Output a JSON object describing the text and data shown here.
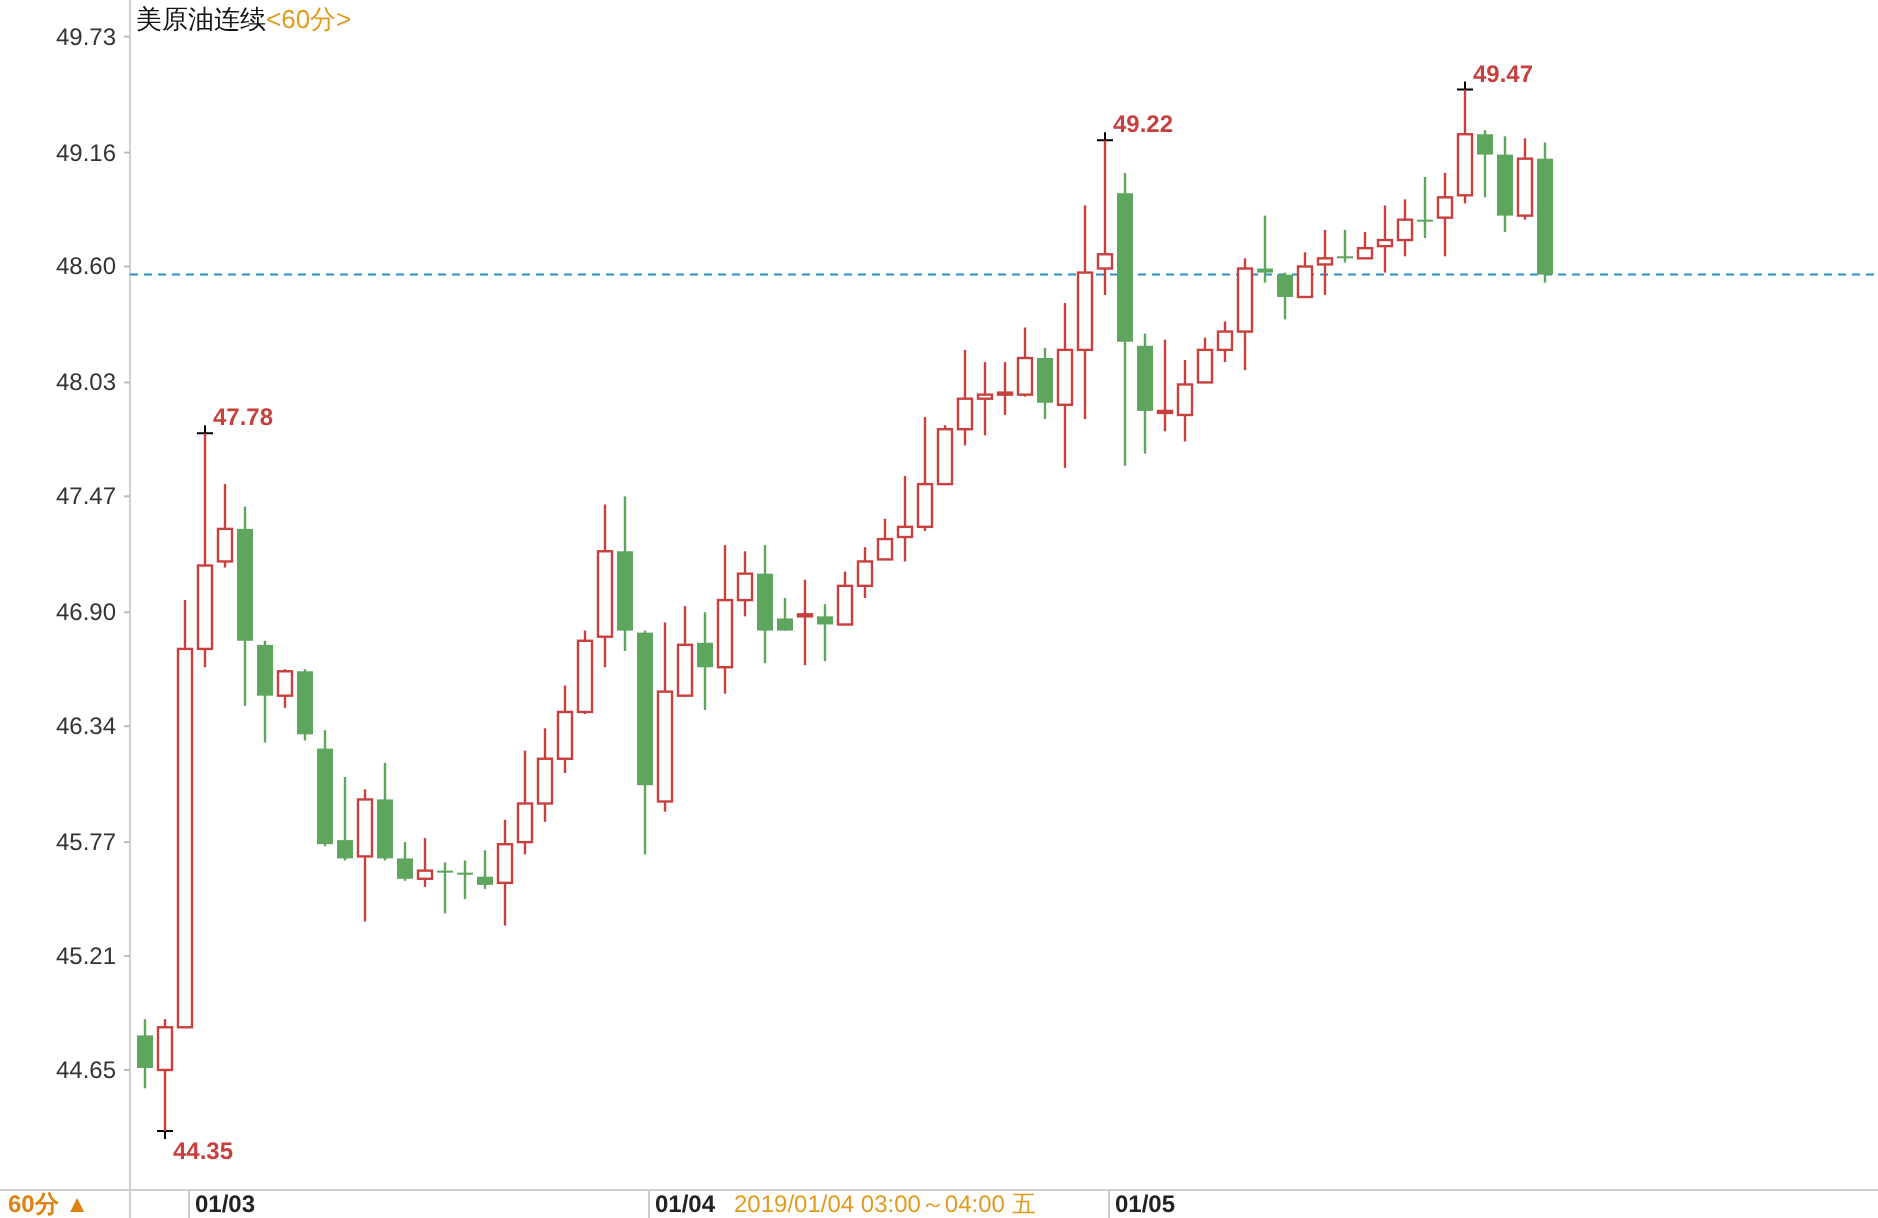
{
  "chart_data": {
    "type": "candlestick",
    "title": "美原油连续",
    "subtitle": "<60分>",
    "categories": [
      null,
      null,
      null,
      null,
      "01/03",
      null,
      null,
      null,
      null,
      null,
      null,
      null,
      null,
      null,
      null,
      null,
      null,
      null,
      null,
      null,
      null,
      null,
      null,
      null,
      null,
      null,
      null,
      "01/04",
      null,
      null,
      null,
      null,
      null,
      null,
      null,
      null,
      null,
      null,
      null,
      null,
      null,
      null,
      null,
      null,
      null,
      null,
      null,
      null,
      null,
      null,
      "01/05",
      null,
      null,
      null,
      null,
      null,
      null,
      null,
      null,
      null,
      null,
      null,
      null,
      null,
      null,
      null,
      null,
      null,
      null,
      null,
      null
    ],
    "ohlc": [
      [
        44.82,
        44.9,
        44.56,
        44.66
      ],
      [
        44.65,
        44.9,
        44.35,
        44.86
      ],
      [
        44.86,
        46.96,
        44.86,
        46.72
      ],
      [
        46.72,
        47.78,
        46.63,
        47.13
      ],
      [
        47.15,
        47.53,
        47.12,
        47.31
      ],
      [
        47.31,
        47.42,
        46.44,
        46.76
      ],
      [
        46.74,
        46.76,
        46.26,
        46.49
      ],
      [
        46.49,
        46.62,
        46.43,
        46.61
      ],
      [
        46.61,
        46.62,
        46.27,
        46.3
      ],
      [
        46.23,
        46.32,
        45.75,
        45.76
      ],
      [
        45.78,
        46.09,
        45.68,
        45.69
      ],
      [
        45.7,
        46.03,
        45.38,
        45.98
      ],
      [
        45.98,
        46.16,
        45.68,
        45.69
      ],
      [
        45.69,
        45.77,
        45.58,
        45.59
      ],
      [
        45.59,
        45.79,
        45.55,
        45.63
      ],
      [
        45.63,
        45.67,
        45.42,
        45.62
      ],
      [
        45.62,
        45.68,
        45.49,
        45.61
      ],
      [
        45.6,
        45.73,
        45.54,
        45.56
      ],
      [
        45.57,
        45.88,
        45.36,
        45.76
      ],
      [
        45.77,
        46.22,
        45.71,
        45.96
      ],
      [
        45.96,
        46.33,
        45.87,
        46.18
      ],
      [
        46.18,
        46.54,
        46.11,
        46.41
      ],
      [
        46.41,
        46.81,
        46.4,
        46.76
      ],
      [
        46.78,
        47.43,
        46.63,
        47.2
      ],
      [
        47.2,
        47.47,
        46.71,
        46.81
      ],
      [
        46.8,
        46.81,
        45.71,
        46.05
      ],
      [
        45.97,
        46.85,
        45.92,
        46.51
      ],
      [
        46.49,
        46.93,
        46.49,
        46.74
      ],
      [
        46.75,
        46.9,
        46.42,
        46.63
      ],
      [
        46.63,
        47.23,
        46.5,
        46.96
      ],
      [
        46.96,
        47.2,
        46.88,
        47.09
      ],
      [
        47.09,
        47.23,
        46.65,
        46.81
      ],
      [
        46.87,
        46.97,
        46.81,
        46.81
      ],
      [
        46.88,
        47.06,
        46.64,
        46.89
      ],
      [
        46.88,
        46.94,
        46.66,
        46.84
      ],
      [
        46.84,
        47.1,
        46.84,
        47.03
      ],
      [
        47.03,
        47.22,
        46.97,
        47.15
      ],
      [
        47.16,
        47.36,
        47.16,
        47.26
      ],
      [
        47.27,
        47.57,
        47.15,
        47.32
      ],
      [
        47.32,
        47.86,
        47.3,
        47.53
      ],
      [
        47.53,
        47.82,
        47.53,
        47.8
      ],
      [
        47.8,
        48.19,
        47.72,
        47.95
      ],
      [
        47.95,
        48.13,
        47.77,
        47.97
      ],
      [
        47.97,
        48.13,
        47.87,
        47.98
      ],
      [
        47.97,
        48.3,
        47.96,
        48.15
      ],
      [
        48.15,
        48.2,
        47.85,
        47.93
      ],
      [
        47.92,
        48.42,
        47.61,
        48.19
      ],
      [
        48.19,
        48.9,
        47.85,
        48.57
      ],
      [
        48.59,
        49.22,
        48.46,
        48.66
      ],
      [
        48.96,
        49.06,
        47.62,
        48.23
      ],
      [
        48.21,
        48.27,
        47.68,
        47.89
      ],
      [
        47.88,
        48.24,
        47.79,
        47.89
      ],
      [
        47.87,
        48.14,
        47.74,
        48.02
      ],
      [
        48.03,
        48.25,
        48.03,
        48.19
      ],
      [
        48.19,
        48.33,
        48.13,
        48.28
      ],
      [
        48.28,
        48.64,
        48.09,
        48.59
      ],
      [
        48.59,
        48.85,
        48.52,
        48.57
      ],
      [
        48.56,
        48.57,
        48.34,
        48.45
      ],
      [
        48.45,
        48.67,
        48.45,
        48.6
      ],
      [
        48.61,
        48.78,
        48.46,
        48.64
      ],
      [
        48.65,
        48.78,
        48.62,
        48.64
      ],
      [
        48.64,
        48.77,
        48.64,
        48.69
      ],
      [
        48.7,
        48.9,
        48.57,
        48.73
      ],
      [
        48.73,
        48.93,
        48.65,
        48.83
      ],
      [
        48.83,
        49.04,
        48.74,
        48.82
      ],
      [
        48.84,
        49.06,
        48.65,
        48.94
      ],
      [
        48.95,
        49.47,
        48.91,
        49.25
      ],
      [
        49.25,
        49.27,
        48.94,
        49.15
      ],
      [
        49.15,
        49.24,
        48.77,
        48.85
      ],
      [
        48.85,
        49.23,
        48.83,
        49.13
      ],
      [
        49.13,
        49.21,
        48.52,
        48.56
      ]
    ],
    "colors": [
      "#5ea55e",
      "#c8403e",
      "#c8403e",
      "#c8403e",
      "#c8403e",
      "#5ea55e",
      "#5ea55e",
      "#c8403e",
      "#5ea55e",
      "#5ea55e",
      "#5ea55e",
      "#c8403e",
      "#5ea55e",
      "#5ea55e",
      "#c8403e",
      "#5ea55e",
      "#5ea55e",
      "#5ea55e",
      "#c8403e",
      "#c8403e",
      "#c8403e",
      "#c8403e",
      "#c8403e",
      "#c8403e",
      "#5ea55e",
      "#5ea55e",
      "#c8403e",
      "#c8403e",
      "#5ea55e",
      "#c8403e",
      "#c8403e",
      "#5ea55e",
      "#5ea55e",
      "#c8403e",
      "#5ea55e",
      "#c8403e",
      "#c8403e",
      "#c8403e",
      "#c8403e",
      "#c8403e",
      "#c8403e",
      "#c8403e",
      "#c8403e",
      "#c8403e",
      "#c8403e",
      "#5ea55e",
      "#c8403e",
      "#c8403e",
      "#c8403e",
      "#5ea55e",
      "#5ea55e",
      "#c8403e",
      "#c8403e",
      "#c8403e",
      "#c8403e",
      "#c8403e",
      "#5ea55e",
      "#5ea55e",
      "#c8403e",
      "#c8403e",
      "#5ea55e",
      "#c8403e",
      "#c8403e",
      "#c8403e",
      "#5ea55e",
      "#c8403e",
      "#c8403e",
      "#5ea55e",
      "#5ea55e",
      "#c8403e",
      "#5ea55e"
    ],
    "ylim": [
      44.06,
      49.91
    ],
    "yticks": [
      49.73,
      49.16,
      {
        "value": 48.6,
        "label": "48.60"
      },
      48.03,
      47.47,
      {
        "value": 46.9,
        "label": "46.90"
      },
      46.34,
      45.77,
      45.21,
      44.65
    ],
    "ref_lines": [
      {
        "axis": "y",
        "value": 48.56,
        "color": "#2a8fbd",
        "line_style": "dashed"
      }
    ],
    "grid": false,
    "annotations": [
      "44.35",
      "47.78",
      "49.22",
      "49.47",
      "2019/01/04 03:00～04:00 五",
      "60分 ▲"
    ]
  }
}
